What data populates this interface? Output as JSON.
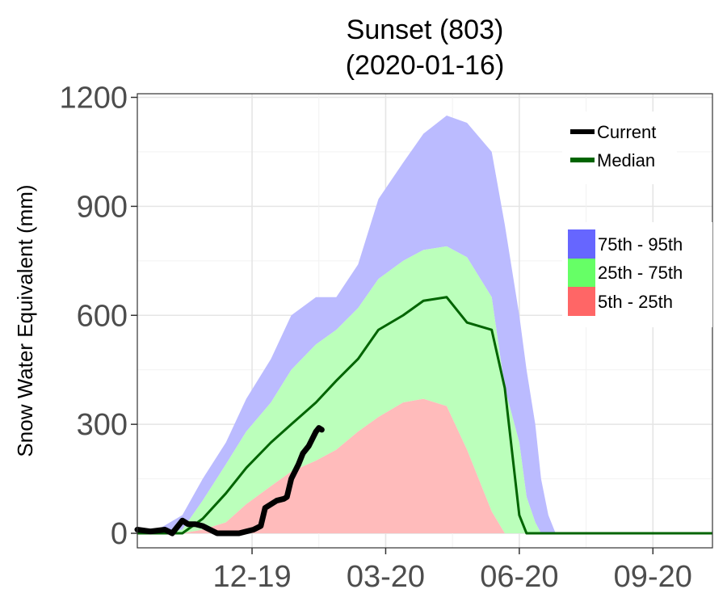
{
  "chart_data": {
    "type": "area",
    "title": "Sunset (803)",
    "subtitle": "(2020-01-16)",
    "xlabel": "",
    "ylabel": "Snow Water Equivalent (mm)",
    "x_range": [
      "2019-10-01",
      "2020-10-31"
    ],
    "ylim": [
      -40,
      1210
    ],
    "y_ticks": [
      0,
      300,
      600,
      900,
      1200
    ],
    "y_tick_labels": [
      "0",
      "300",
      "600",
      "900",
      "1200"
    ],
    "x_ticks": [
      "2019-12-19",
      "2020-03-20",
      "2020-06-20",
      "2020-09-20"
    ],
    "x_tick_labels": [
      "12-19",
      "03-20",
      "06-20",
      "09-20"
    ],
    "grid": true,
    "legend_position": "top-right",
    "legend_lines": [
      {
        "name": "Current",
        "color": "#000000"
      },
      {
        "name": "Median",
        "color": "#006400"
      }
    ],
    "legend_bands": [
      {
        "name": "75th - 95th",
        "color": "#6666ff"
      },
      {
        "name": "25th - 75th",
        "color": "#66ff66"
      },
      {
        "name": "5th - 25th",
        "color": "#ff6666"
      }
    ],
    "band_fill_colors": {
      "p95": "#bbbbff",
      "p75": "#bbffbb",
      "p25": "#ffbbbb"
    },
    "x_dates": [
      "2019-10-01",
      "2019-10-15",
      "2019-11-01",
      "2019-11-15",
      "2019-12-01",
      "2019-12-15",
      "2020-01-01",
      "2020-01-15",
      "2020-02-01",
      "2020-02-15",
      "2020-03-01",
      "2020-03-15",
      "2020-04-01",
      "2020-04-15",
      "2020-05-01",
      "2020-05-15",
      "2020-06-01",
      "2020-06-10",
      "2020-06-20",
      "2020-06-25",
      "2020-07-01",
      "2020-07-05",
      "2020-07-10",
      "2020-07-15",
      "2020-08-01",
      "2020-09-01",
      "2020-10-01",
      "2020-10-31"
    ],
    "series": [
      {
        "name": "95th",
        "values": [
          0,
          10,
          50,
          150,
          250,
          370,
          480,
          600,
          650,
          650,
          740,
          920,
          1020,
          1100,
          1150,
          1130,
          1050,
          850,
          600,
          450,
          300,
          150,
          50,
          0,
          0,
          0,
          0,
          0
        ]
      },
      {
        "name": "75th",
        "values": [
          0,
          0,
          10,
          90,
          190,
          280,
          360,
          450,
          520,
          560,
          620,
          700,
          750,
          780,
          790,
          760,
          650,
          400,
          250,
          100,
          30,
          0,
          0,
          0,
          0,
          0,
          0,
          0
        ]
      },
      {
        "name": "25th",
        "values": [
          0,
          0,
          0,
          10,
          30,
          80,
          130,
          170,
          200,
          230,
          280,
          320,
          360,
          370,
          350,
          230,
          60,
          0,
          0,
          0,
          0,
          0,
          0,
          0,
          0,
          0,
          0,
          0
        ]
      },
      {
        "name": "Median",
        "values": [
          0,
          0,
          0,
          40,
          110,
          180,
          250,
          300,
          360,
          420,
          480,
          560,
          600,
          640,
          650,
          580,
          560,
          400,
          50,
          0,
          0,
          0,
          0,
          0,
          0,
          0,
          0,
          0
        ]
      },
      {
        "name": "Current",
        "x": [
          "2019-10-01",
          "2019-10-10",
          "2019-10-20",
          "2019-10-25",
          "2019-11-01",
          "2019-11-05",
          "2019-11-10",
          "2019-11-15",
          "2019-11-20",
          "2019-11-25",
          "2019-12-01",
          "2019-12-10",
          "2019-12-20",
          "2019-12-25",
          "2019-12-28",
          "2020-01-01",
          "2020-01-05",
          "2020-01-10",
          "2020-01-12",
          "2020-01-15",
          "2020-01-20",
          "2020-01-23",
          "2020-01-27",
          "2020-02-01",
          "2020-02-03",
          "2020-02-05"
        ],
        "values": [
          10,
          5,
          10,
          0,
          35,
          25,
          25,
          20,
          10,
          0,
          0,
          0,
          10,
          20,
          70,
          80,
          90,
          95,
          100,
          150,
          190,
          220,
          240,
          280,
          290,
          285
        ]
      }
    ]
  }
}
